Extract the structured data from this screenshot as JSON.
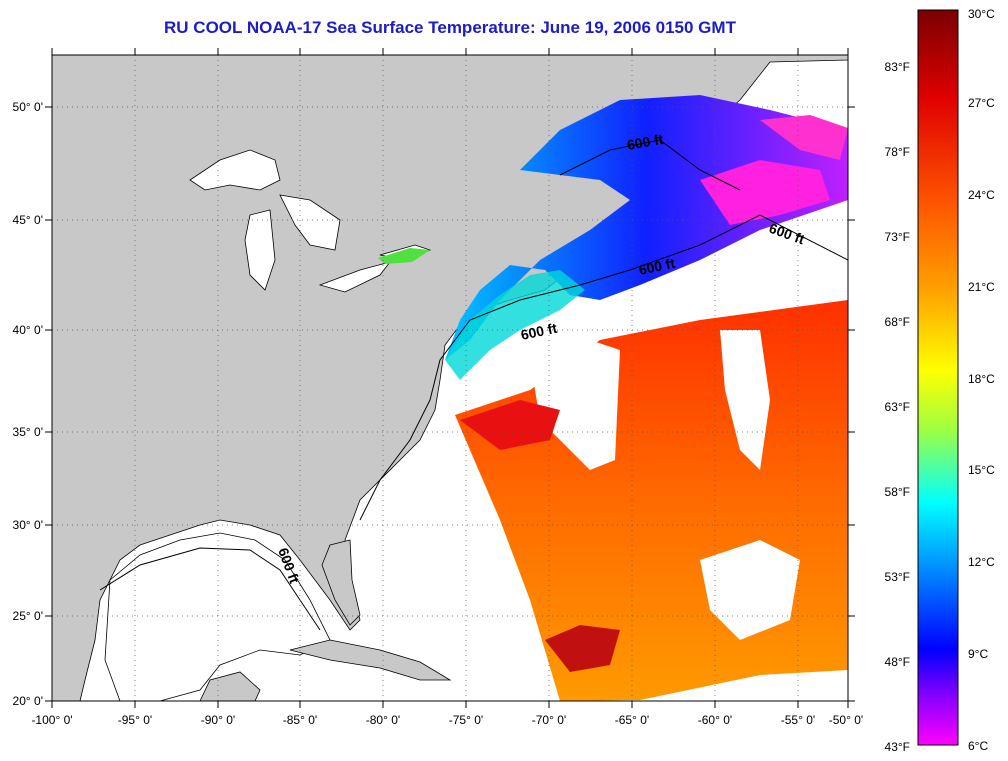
{
  "title": "RU COOL  NOAA-17  Sea Surface Temperature:  June 19, 2006 0150 GMT",
  "lon_ticks": [
    "-100° 0'",
    "-95° 0'",
    "-90° 0'",
    "-85° 0'",
    "-80° 0'",
    "-75° 0'",
    "-70° 0'",
    "-65° 0'",
    "-60° 0'",
    "-55° 0'",
    "-50° 0'"
  ],
  "lat_ticks": [
    "50° 0'",
    "45° 0'",
    "40° 0'",
    "35° 0'",
    "30° 0'",
    "25° 0'",
    "20° 0'"
  ],
  "contour_labels": [
    "600 ft",
    "600 ft",
    "600 ft",
    "600 ft",
    "600 ft"
  ],
  "colorbar": {
    "celsius_labels": [
      "30°C",
      "27°C",
      "24°C",
      "21°C",
      "18°C",
      "15°C",
      "12°C",
      "9°C",
      "6°C"
    ],
    "fahrenheit_labels": [
      "83°F",
      "78°F",
      "73°F",
      "68°F",
      "63°F",
      "58°F",
      "53°F",
      "48°F",
      "43°F"
    ],
    "colors": [
      "#8b0000",
      "#ff0000",
      "#ff8c00",
      "#ffff00",
      "#7fff00",
      "#00ffff",
      "#0000ff",
      "#ff00ff"
    ]
  },
  "colors": {
    "land": "#c8c8c8",
    "title": "#1c1cc8",
    "no_data": "#ffffff"
  }
}
